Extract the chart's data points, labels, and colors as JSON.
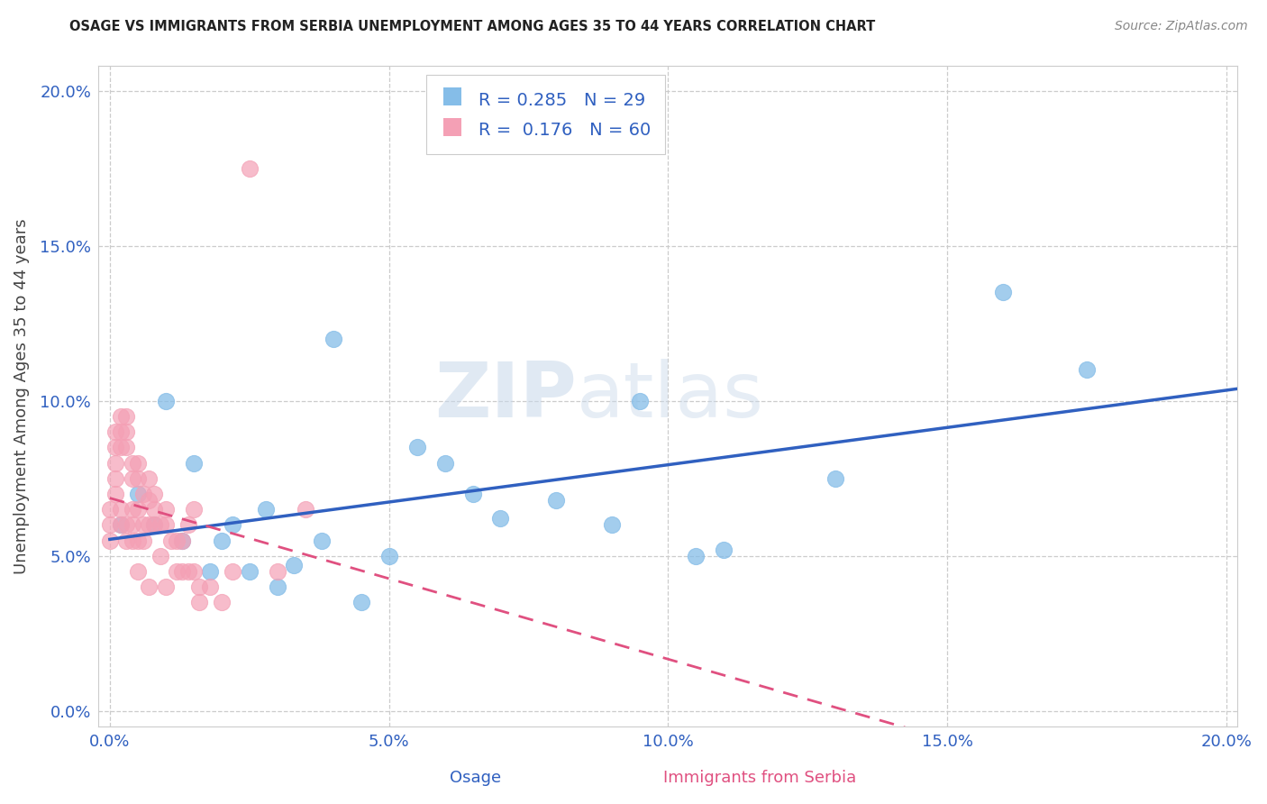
{
  "title": "OSAGE VS IMMIGRANTS FROM SERBIA UNEMPLOYMENT AMONG AGES 35 TO 44 YEARS CORRELATION CHART",
  "source": "Source: ZipAtlas.com",
  "label_osage": "Osage",
  "label_serbia": "Immigrants from Serbia",
  "ylabel": "Unemployment Among Ages 35 to 44 years",
  "osage_R": 0.285,
  "osage_N": 29,
  "serbia_R": 0.176,
  "serbia_N": 60,
  "xlim": [
    -0.002,
    0.202
  ],
  "ylim": [
    -0.005,
    0.208
  ],
  "xticks": [
    0.0,
    0.05,
    0.1,
    0.15,
    0.2
  ],
  "yticks": [
    0.0,
    0.05,
    0.1,
    0.15,
    0.2
  ],
  "osage_color": "#85bde8",
  "serbia_color": "#f4a0b5",
  "osage_line_color": "#3060c0",
  "serbia_line_color": "#e05080",
  "background": "#ffffff",
  "watermark_line1": "ZIP",
  "watermark_line2": "atlas",
  "osage_x": [
    0.002,
    0.005,
    0.008,
    0.01,
    0.013,
    0.015,
    0.018,
    0.02,
    0.022,
    0.025,
    0.028,
    0.03,
    0.033,
    0.038,
    0.04,
    0.045,
    0.05,
    0.055,
    0.06,
    0.065,
    0.07,
    0.08,
    0.09,
    0.095,
    0.105,
    0.11,
    0.13,
    0.16,
    0.175
  ],
  "osage_y": [
    0.06,
    0.07,
    0.06,
    0.1,
    0.055,
    0.08,
    0.045,
    0.055,
    0.06,
    0.045,
    0.065,
    0.04,
    0.047,
    0.055,
    0.12,
    0.035,
    0.05,
    0.085,
    0.08,
    0.07,
    0.062,
    0.068,
    0.06,
    0.1,
    0.05,
    0.052,
    0.075,
    0.135,
    0.11
  ],
  "serbia_x": [
    0.0,
    0.0,
    0.0,
    0.001,
    0.001,
    0.001,
    0.001,
    0.001,
    0.002,
    0.002,
    0.002,
    0.002,
    0.002,
    0.003,
    0.003,
    0.003,
    0.003,
    0.003,
    0.004,
    0.004,
    0.004,
    0.004,
    0.004,
    0.005,
    0.005,
    0.005,
    0.005,
    0.005,
    0.006,
    0.006,
    0.006,
    0.007,
    0.007,
    0.007,
    0.007,
    0.008,
    0.008,
    0.008,
    0.009,
    0.009,
    0.01,
    0.01,
    0.01,
    0.011,
    0.012,
    0.012,
    0.013,
    0.013,
    0.014,
    0.014,
    0.015,
    0.015,
    0.016,
    0.016,
    0.018,
    0.02,
    0.022,
    0.025,
    0.03,
    0.035
  ],
  "serbia_y": [
    0.065,
    0.06,
    0.055,
    0.09,
    0.085,
    0.08,
    0.075,
    0.07,
    0.095,
    0.09,
    0.085,
    0.065,
    0.06,
    0.095,
    0.09,
    0.085,
    0.06,
    0.055,
    0.08,
    0.075,
    0.065,
    0.06,
    0.055,
    0.08,
    0.075,
    0.065,
    0.055,
    0.045,
    0.07,
    0.06,
    0.055,
    0.075,
    0.068,
    0.06,
    0.04,
    0.07,
    0.065,
    0.06,
    0.06,
    0.05,
    0.065,
    0.06,
    0.04,
    0.055,
    0.055,
    0.045,
    0.055,
    0.045,
    0.06,
    0.045,
    0.065,
    0.045,
    0.04,
    0.035,
    0.04,
    0.035,
    0.045,
    0.175,
    0.045,
    0.065
  ]
}
